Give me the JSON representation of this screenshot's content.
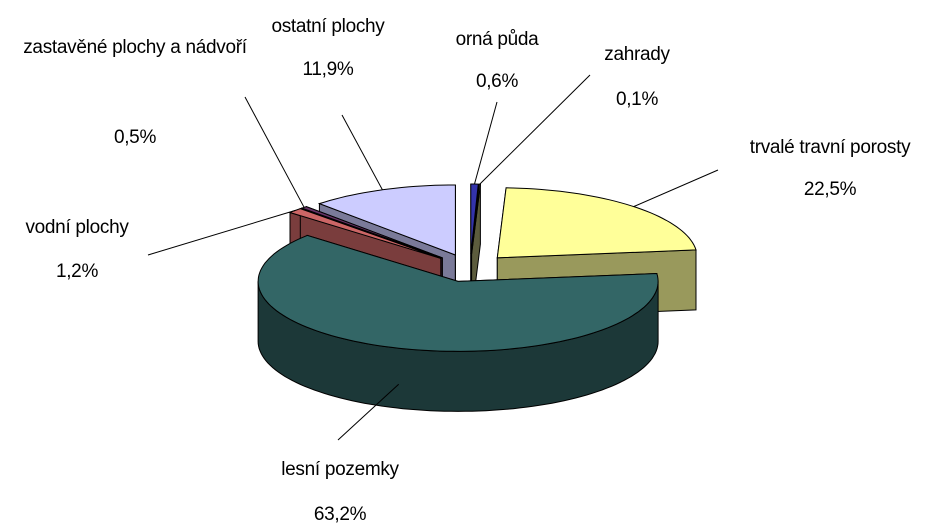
{
  "chart_data": {
    "type": "pie",
    "categories": [
      "orná půda",
      "zahrady",
      "trvalé travní porosty",
      "lesní pozemky",
      "vodní plochy",
      "zastavěné plochy a nádvoří",
      "ostatní plochy"
    ],
    "values": [
      0.6,
      0.1,
      22.5,
      63.2,
      1.2,
      0.5,
      11.9
    ],
    "value_labels": [
      "0,6%",
      "0,1%",
      "22,5%",
      "63,2%",
      "1,2%",
      "0,5%",
      "11,9%"
    ],
    "colors": [
      "#3333aa",
      "#999966",
      "#ffff99",
      "#336666",
      "#cc6666",
      "#663366",
      "#ccccff"
    ]
  }
}
